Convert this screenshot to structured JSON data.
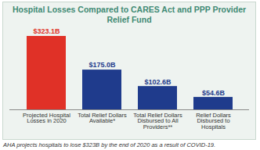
{
  "chart_data": {
    "type": "bar",
    "title": "Hospital Losses Compared to CARES Act and PPP Provider Relief Fund",
    "caption": "AHA projects hospitals to lose $323B by the end of 2020 as a result of COVID-19.",
    "categories": [
      "Projected Hospital Losses in 2020",
      "Total Relief Dollars Available*",
      "Total Relief Dollars Disbursed to All Providers**",
      "Relief Dollars Disbursed to Hospitals"
    ],
    "values": [
      323.1,
      175.0,
      102.6,
      54.6
    ],
    "value_labels": [
      "$323.1B",
      "$175.0B",
      "$102.6B",
      "$54.6B"
    ],
    "colors": [
      "#e03127",
      "#1f3b8c",
      "#1f3b8c",
      "#1f3b8c"
    ],
    "ylim": [
      0,
      323.1
    ],
    "data_labels": true,
    "tick_labels": "x",
    "grid": false
  }
}
